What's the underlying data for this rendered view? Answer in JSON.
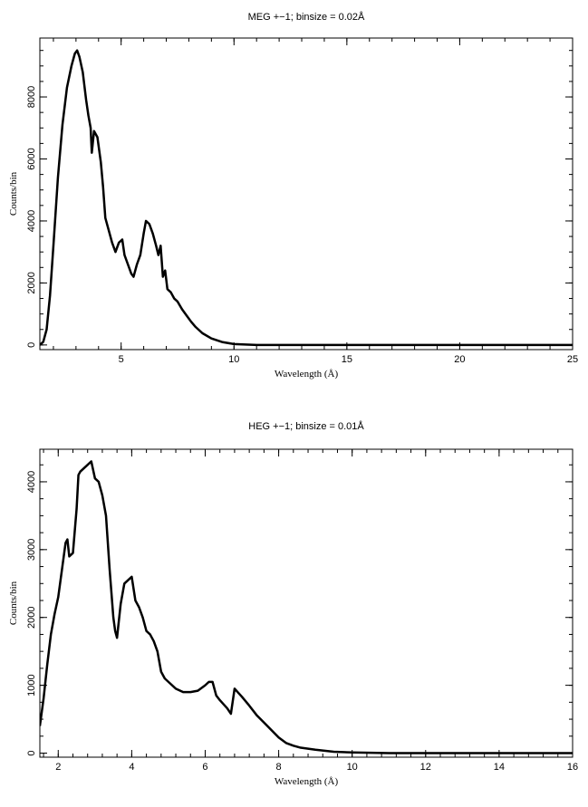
{
  "chart_data": [
    {
      "type": "line",
      "title": "MEG +−1; binsize = 0.02Å",
      "xlabel": "Wavelength (Å)",
      "ylabel": "Counts/bin",
      "xlim": [
        1.4,
        25
      ],
      "ylim": [
        -150,
        9900
      ],
      "xticks": [
        5,
        10,
        15,
        20,
        25
      ],
      "yticks": [
        0,
        2000,
        4000,
        6000,
        8000
      ],
      "grid": false,
      "series": [
        {
          "x": [
            1.4,
            1.55,
            1.7,
            1.85,
            2.0,
            2.2,
            2.4,
            2.6,
            2.8,
            2.95,
            3.05,
            3.15,
            3.3,
            3.45,
            3.55,
            3.65,
            3.7,
            3.8,
            3.95,
            4.1,
            4.2,
            4.3,
            4.45,
            4.6,
            4.75,
            4.9,
            5.05,
            5.15,
            5.3,
            5.45,
            5.55,
            5.7,
            5.85,
            6.0,
            6.1,
            6.25,
            6.4,
            6.55,
            6.65,
            6.75,
            6.85,
            6.95,
            7.05,
            7.2,
            7.35,
            7.5,
            7.7,
            7.9,
            8.1,
            8.3,
            8.6,
            9.0,
            9.5,
            10.0,
            11.0,
            12.0,
            14.0,
            16.0,
            18.0,
            20.0,
            22.0,
            24.0,
            25.0
          ],
          "y": [
            0,
            100,
            500,
            1600,
            3200,
            5400,
            7100,
            8300,
            9000,
            9400,
            9500,
            9300,
            8800,
            7900,
            7400,
            7000,
            6200,
            6900,
            6700,
            5900,
            5100,
            4100,
            3700,
            3300,
            3000,
            3300,
            3400,
            2900,
            2600,
            2300,
            2200,
            2600,
            2900,
            3600,
            4000,
            3900,
            3600,
            3200,
            2900,
            3200,
            2200,
            2400,
            1800,
            1700,
            1500,
            1400,
            1150,
            950,
            750,
            580,
            380,
            210,
            90,
            30,
            0,
            0,
            0,
            0,
            0,
            0,
            0,
            0,
            0
          ]
        }
      ]
    },
    {
      "type": "line",
      "title": "HEG +−1; binsize = 0.01Å",
      "xlabel": "Wavelength (Å)",
      "ylabel": "Counts/bin",
      "xlim": [
        1.5,
        16
      ],
      "ylim": [
        -60,
        4480
      ],
      "xticks": [
        2,
        4,
        6,
        8,
        10,
        12,
        14,
        16
      ],
      "yticks": [
        0,
        1000,
        2000,
        3000,
        4000
      ],
      "grid": false,
      "series": [
        {
          "x": [
            1.5,
            1.6,
            1.7,
            1.8,
            1.9,
            2.0,
            2.1,
            2.2,
            2.25,
            2.3,
            2.4,
            2.5,
            2.55,
            2.6,
            2.7,
            2.8,
            2.9,
            3.0,
            3.1,
            3.2,
            3.3,
            3.4,
            3.5,
            3.55,
            3.6,
            3.7,
            3.8,
            3.9,
            4.0,
            4.1,
            4.2,
            4.3,
            4.4,
            4.5,
            4.6,
            4.7,
            4.8,
            4.9,
            5.0,
            5.2,
            5.4,
            5.6,
            5.8,
            6.0,
            6.1,
            6.2,
            6.3,
            6.4,
            6.5,
            6.6,
            6.7,
            6.8,
            7.0,
            7.2,
            7.4,
            7.6,
            7.8,
            8.0,
            8.2,
            8.4,
            8.6,
            9.0,
            9.5,
            10.0,
            11.0,
            12.0,
            14.0,
            16.0
          ],
          "y": [
            400,
            800,
            1300,
            1750,
            2050,
            2300,
            2700,
            3100,
            3150,
            2900,
            2950,
            3600,
            4100,
            4150,
            4200,
            4250,
            4300,
            4050,
            4000,
            3800,
            3500,
            2700,
            2000,
            1800,
            1700,
            2200,
            2500,
            2550,
            2600,
            2250,
            2150,
            2000,
            1800,
            1750,
            1650,
            1500,
            1200,
            1100,
            1050,
            950,
            900,
            900,
            920,
            1000,
            1050,
            1050,
            850,
            780,
            720,
            660,
            580,
            950,
            830,
            700,
            560,
            450,
            340,
            230,
            150,
            110,
            80,
            50,
            20,
            10,
            0,
            0,
            0,
            0
          ]
        }
      ]
    }
  ]
}
